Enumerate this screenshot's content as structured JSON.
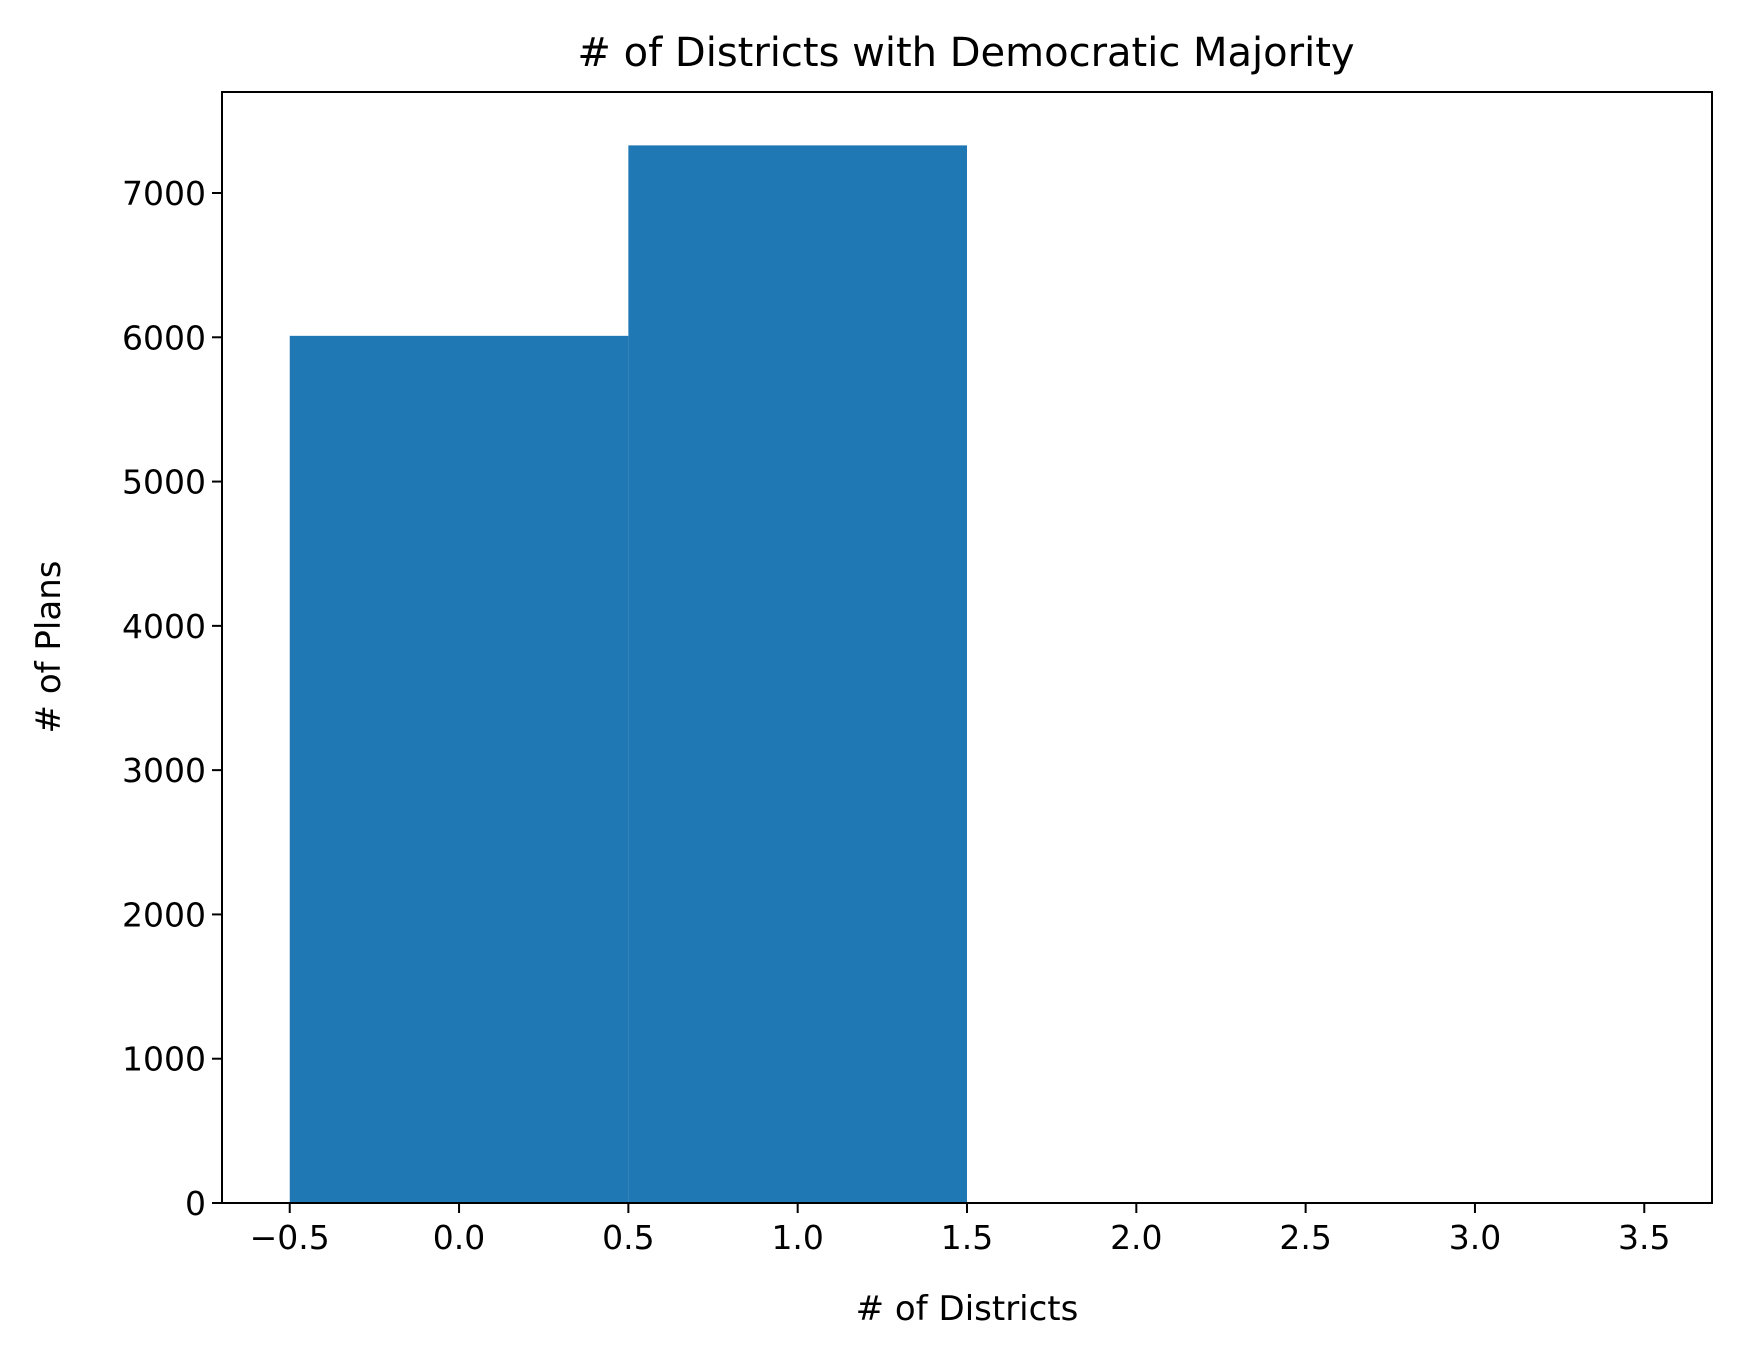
{
  "chart_data": {
    "type": "bar",
    "title": "# of Districts with Democratic Majority",
    "xlabel": "# of Districts",
    "ylabel": "# of Plans",
    "xlim": [
      -0.7,
      3.7
    ],
    "ylim": [
      0,
      7700
    ],
    "x_ticks": [
      -0.5,
      0.0,
      0.5,
      1.0,
      1.5,
      2.0,
      2.5,
      3.0,
      3.5
    ],
    "x_tick_labels": [
      "−0.5",
      "0.0",
      "0.5",
      "1.0",
      "1.5",
      "2.0",
      "2.5",
      "3.0",
      "3.5"
    ],
    "y_ticks": [
      0,
      1000,
      2000,
      3000,
      4000,
      5000,
      6000,
      7000
    ],
    "y_tick_labels": [
      "0",
      "1000",
      "2000",
      "3000",
      "4000",
      "5000",
      "6000",
      "7000"
    ],
    "bins": [
      {
        "x0": -0.5,
        "x1": 0.5,
        "value": 6010
      },
      {
        "x0": 0.5,
        "x1": 1.5,
        "value": 7330
      }
    ],
    "bar_color": "#1f77b4",
    "grid": false,
    "legend": false
  }
}
